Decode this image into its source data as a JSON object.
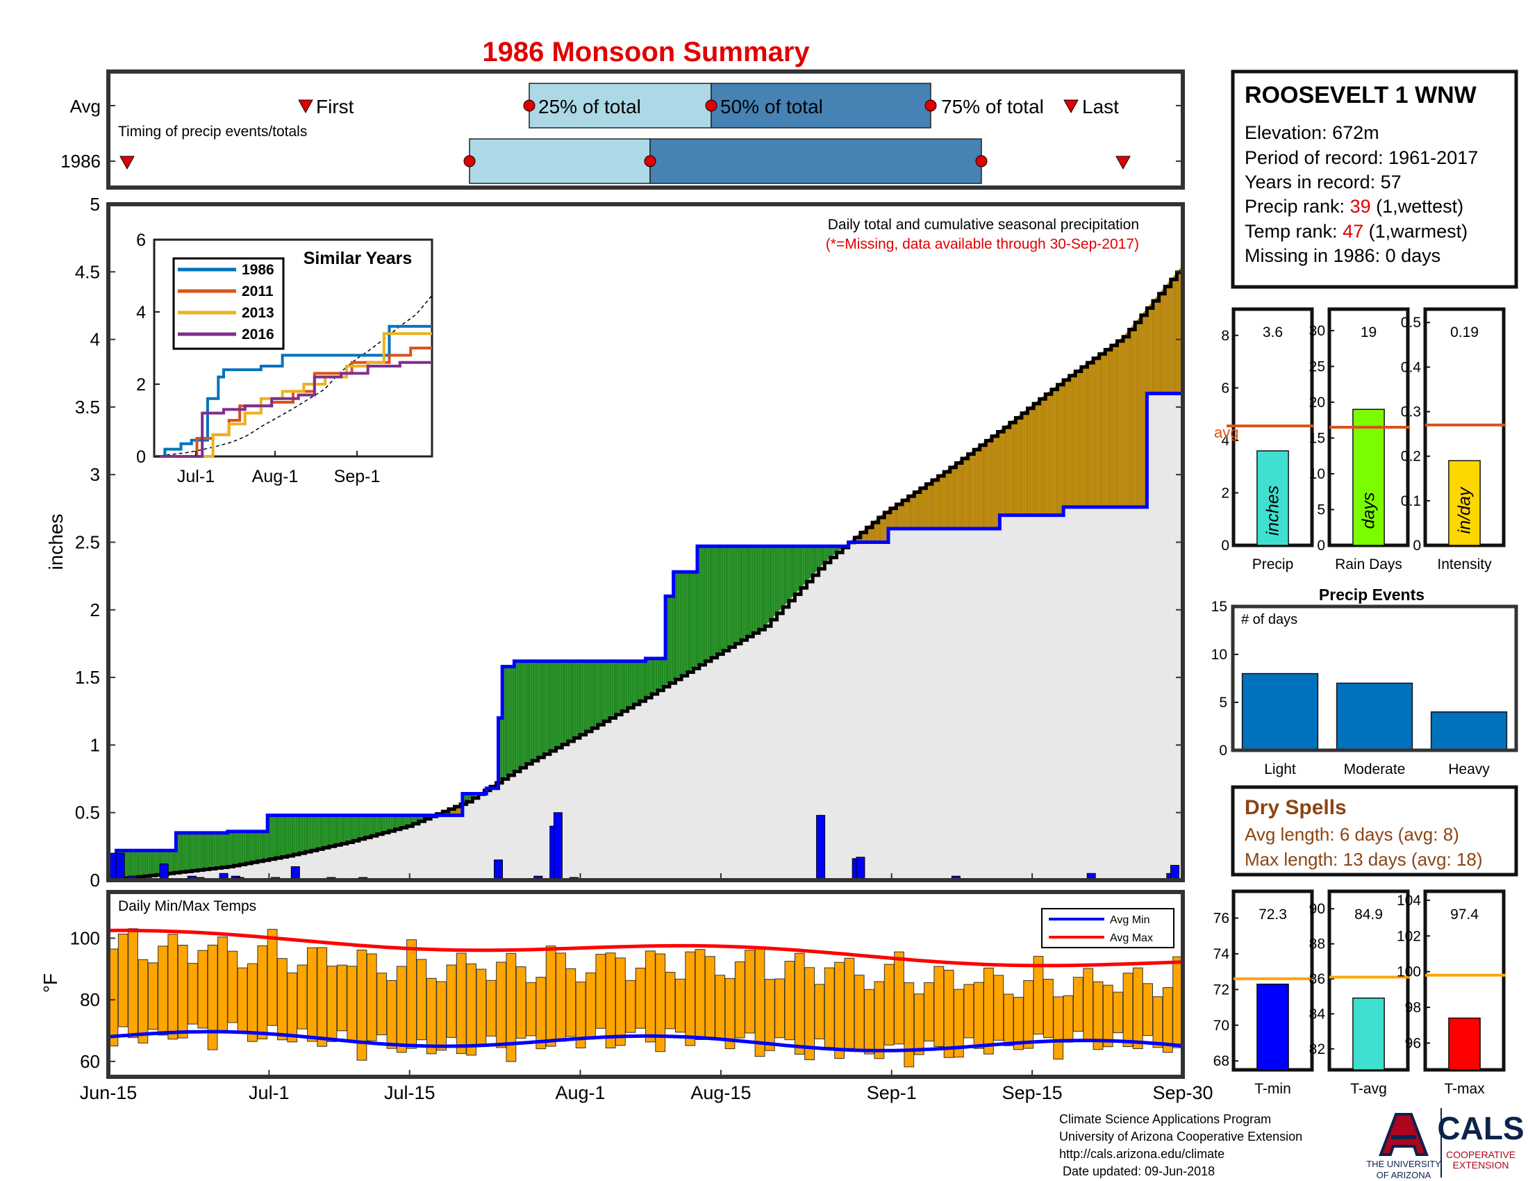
{
  "title": "1986 Monsoon Summary",
  "colors": {
    "title": "#e00000",
    "red": "#e00000",
    "black": "#000",
    "wet": "#228b22",
    "dry": "#b8860b",
    "fill": "#e8e8e8",
    "blue": "#0000ff",
    "orange": "#ffa500",
    "brown": "#8b4513",
    "light_box": "#add8e6",
    "dark_box": "#4682b4"
  },
  "timing_panel": {
    "row_labels": [
      "Avg",
      "1986"
    ],
    "subtitle": "Timing of precip events/totals",
    "labels": {
      "first": "First",
      "p25": "25% of total",
      "p50": "50% of total",
      "p75": "75% of total",
      "last": "Last"
    }
  },
  "main_panel": {
    "note": "Daily total and cumulative seasonal precipitation",
    "missing_note": "(*=Missing, data available through 30-Sep-2017)",
    "ylabel": "inches",
    "yticks": [
      "0",
      "0.5",
      "1",
      "1.5",
      "2",
      "2.5",
      "3",
      "3.5",
      "4",
      "4.5",
      "5"
    ],
    "xticks": [
      "Jun-15",
      "Jul-1",
      "Jul-15",
      "Aug-1",
      "Aug-15",
      "Sep-1",
      "Sep-15",
      "Sep-30"
    ]
  },
  "inset": {
    "title": "Similar Years",
    "yticks": [
      "0",
      "2",
      "4",
      "6"
    ],
    "xticks": [
      "Jul-1",
      "Aug-1",
      "Sep-1"
    ],
    "legend": [
      "1986",
      "2011",
      "2013",
      "2016"
    ],
    "legend_colors": [
      "#0072bd",
      "#d95319",
      "#edb120",
      "#7e2f8e"
    ]
  },
  "temp_panel": {
    "title": "Daily Min/Max Temps",
    "ylabel": "°F",
    "yticks": [
      "60",
      "80",
      "100"
    ],
    "legend": [
      "Avg Min",
      "Avg Max"
    ]
  },
  "station": {
    "name": "ROOSEVELT 1 WNW",
    "elevation": "Elevation: 672m",
    "period": "Period of record: 1961-2017",
    "years": "Years in record: 57",
    "precip_rank_label": "Precip rank: ",
    "precip_rank": "39",
    "precip_rank_note": " (1,wettest)",
    "temp_rank_label": "Temp rank: ",
    "temp_rank": "47",
    "temp_rank_note": " (1,warmest)",
    "missing": "Missing in 1986: 0 days"
  },
  "small_bars": [
    {
      "label": "Precip",
      "value": "3.6",
      "unit": "inches",
      "avg_label": "avg",
      "yticks": [
        "0",
        "2",
        "4",
        "6",
        "8"
      ],
      "color": "#40e0d0"
    },
    {
      "label": "Rain Days",
      "value": "19",
      "unit": "days",
      "yticks": [
        "0",
        "5",
        "10",
        "15",
        "20",
        "25",
        "30"
      ],
      "color": "#7cfc00"
    },
    {
      "label": "Intensity",
      "value": "0.19",
      "unit": "in/day",
      "yticks": [
        "0",
        "0.1",
        "0.2",
        "0.3",
        "0.4",
        "0.5"
      ],
      "color": "#ffd700"
    }
  ],
  "precip_events": {
    "title": "Precip Events",
    "ylabel_note": "# of days",
    "yticks": [
      "0",
      "5",
      "10",
      "15"
    ],
    "categories": [
      "Light",
      "Moderate",
      "Heavy"
    ]
  },
  "dry_spells": {
    "title": "Dry Spells",
    "avg": "Avg length: 6 days (avg: 8)",
    "max": "Max length: 13 days (avg: 18)"
  },
  "temp_bars": [
    {
      "label": "T-min",
      "value": "72.3",
      "yticks": [
        "68",
        "70",
        "72",
        "74",
        "76"
      ],
      "color": "#0000ff"
    },
    {
      "label": "T-avg",
      "value": "84.9",
      "yticks": [
        "82",
        "84",
        "86",
        "88",
        "90"
      ],
      "color": "#40e0d0"
    },
    {
      "label": "T-max",
      "value": "97.4",
      "yticks": [
        "96",
        "98",
        "100",
        "102",
        "104"
      ],
      "color": "#ff0000"
    }
  ],
  "footer": {
    "line1": "Climate Science Applications Program",
    "line2": "University of Arizona Cooperative Extension",
    "line3": "http://cals.arizona.edu/climate",
    "line4": " Date updated: 09-Jun-2018",
    "logo_ua1": "THE UNIVERSITY",
    "logo_ua2": "OF ARIZONA",
    "logo_cals": "CALS",
    "logo_coop1": "COOPERATIVE",
    "logo_coop2": "EXTENSION"
  },
  "chart_data": [
    {
      "type": "line",
      "title": "1986 Monsoon Summary",
      "subtitle": "Daily total and cumulative seasonal precipitation",
      "ylabel": "inches",
      "ylim": [
        0,
        5
      ],
      "x_range": [
        "Jun-15",
        "Sep-30"
      ],
      "series": [
        {
          "name": "Daily precip",
          "type": "bar",
          "x": [
            1,
            3,
            6,
            7,
            14,
            15,
            21,
            23,
            24,
            29,
            32,
            33,
            42,
            47,
            56,
            64,
            88,
            98,
            108,
            112,
            113,
            117,
            118,
            119,
            121,
            123,
            130,
            138,
            151,
            159,
            164,
            165,
            179,
            188,
            189,
            197,
            199,
            213,
            221,
            227,
            235,
            243,
            246,
            247,
            255,
            256,
            260,
            267,
            268
          ],
          "values": [
            0.2,
            0.2,
            0.03,
            0.01,
            0.12,
            0.01,
            0.03,
            0.02,
            0.01,
            0.05,
            0.03,
            0.02,
            0.02,
            0.1,
            0.02,
            0.02,
            0.01,
            0.15,
            0.03,
            0.4,
            0.5,
            0.02,
            0.01,
            0.01,
            0.01,
            0.01,
            0.01,
            0.01,
            0.01,
            0.01,
            0.01,
            0.01,
            0.48,
            0.16,
            0.17,
            0.01,
            0.01,
            0.03,
            0.01,
            0.01,
            0.01,
            0.01,
            0.01,
            0.05,
            0.01,
            0.01,
            0.01,
            0.05,
            0.11
          ]
        },
        {
          "name": "Cumulative 1986",
          "type": "line",
          "x": [
            0,
            2,
            4,
            10,
            16,
            17,
            20,
            22,
            30,
            31,
            39,
            40,
            45,
            80,
            85,
            89,
            92,
            95,
            96,
            98,
            99,
            102,
            103,
            104,
            132,
            134,
            135,
            137,
            138,
            140,
            142,
            148,
            149,
            186,
            196,
            210,
            224,
            240,
            260,
            261,
            269,
            270
          ],
          "values": [
            0,
            0.22,
            0.22,
            0.22,
            0.22,
            0.35,
            0.35,
            0.35,
            0.36,
            0.36,
            0.36,
            0.48,
            0.48,
            0.48,
            0.48,
            0.64,
            0.64,
            0.68,
            0.68,
            1.2,
            1.58,
            1.62,
            1.62,
            1.62,
            1.62,
            1.62,
            1.64,
            1.64,
            1.64,
            2.1,
            2.28,
            2.47,
            2.47,
            2.5,
            2.6,
            2.6,
            2.7,
            2.76,
            2.76,
            3.6,
            3.6,
            3.6
          ]
        },
        {
          "name": "Average cumulative",
          "type": "line",
          "x": [
            0,
            15,
            30,
            45,
            60,
            75,
            90,
            105,
            120,
            135,
            150,
            165,
            180,
            195,
            210,
            225,
            240,
            255,
            270
          ],
          "values": [
            0,
            0.05,
            0.1,
            0.18,
            0.28,
            0.4,
            0.58,
            0.86,
            1.1,
            1.35,
            1.62,
            1.88,
            2.35,
            2.72,
            3.02,
            3.35,
            3.7,
            4.02,
            4.55
          ]
        }
      ]
    },
    {
      "type": "line",
      "title": "Similar Years",
      "ylim": [
        0,
        6
      ],
      "series": [
        {
          "name": "1986",
          "x": [
            0,
            3,
            4,
            8,
            10,
            14,
            20,
            24,
            26,
            40,
            44,
            48,
            80,
            84,
            88,
            102,
            104
          ],
          "values": [
            0,
            0,
            0.2,
            0.2,
            0.35,
            0.45,
            1.6,
            2.2,
            2.4,
            2.5,
            2.5,
            2.8,
            2.8,
            2.8,
            3.6,
            3.6,
            3.6
          ]
        },
        {
          "name": "2011",
          "x": [
            0,
            10,
            16,
            22,
            28,
            32,
            44,
            52,
            60,
            74,
            80,
            88,
            96,
            104
          ],
          "values": [
            0,
            0,
            0.5,
            0.6,
            1.0,
            1.4,
            1.5,
            1.8,
            2.3,
            2.6,
            2.6,
            2.8,
            3.0,
            3.0
          ]
        },
        {
          "name": "2013",
          "x": [
            0,
            18,
            22,
            28,
            34,
            40,
            48,
            56,
            64,
            72,
            80,
            86,
            92,
            104
          ],
          "values": [
            0,
            0,
            0.6,
            0.9,
            1.2,
            1.6,
            1.8,
            2.0,
            2.2,
            2.5,
            2.6,
            3.4,
            3.4,
            3.4
          ]
        },
        {
          "name": "2016",
          "x": [
            0,
            10,
            18,
            26,
            34,
            44,
            54,
            60,
            70,
            80,
            92,
            104
          ],
          "values": [
            0,
            0,
            1.2,
            1.3,
            1.4,
            1.6,
            1.7,
            2.2,
            2.3,
            2.5,
            2.6,
            2.6
          ]
        }
      ]
    },
    {
      "type": "bar",
      "title": "Daily Min/Max Temps",
      "ylabel": "°F",
      "ylim": [
        55,
        115
      ],
      "series": [
        {
          "name": "Avg Min",
          "start": 68.0,
          "end": 64.5
        },
        {
          "name": "Avg Max",
          "start": 101.0,
          "end": 91.5
        }
      ]
    },
    {
      "type": "bar",
      "categories": [
        "Precip"
      ],
      "values": [
        3.6
      ],
      "avg": 4.55,
      "ylim": [
        0,
        9
      ]
    },
    {
      "type": "bar",
      "categories": [
        "Rain Days"
      ],
      "values": [
        19
      ],
      "avg": 16.5,
      "ylim": [
        0,
        33
      ]
    },
    {
      "type": "bar",
      "categories": [
        "Intensity"
      ],
      "values": [
        0.19
      ],
      "avg": 0.27,
      "ylim": [
        0,
        0.53
      ]
    },
    {
      "type": "bar",
      "title": "Precip Events",
      "categories": [
        "Light",
        "Moderate",
        "Heavy"
      ],
      "values": [
        8,
        7,
        4
      ],
      "ylim": [
        0,
        15
      ]
    },
    {
      "type": "bar",
      "categories": [
        "T-min"
      ],
      "values": [
        72.3
      ],
      "avg": 72.6,
      "ylim": [
        67.5,
        77.5
      ]
    },
    {
      "type": "bar",
      "categories": [
        "T-avg"
      ],
      "values": [
        84.9
      ],
      "avg": 86.1,
      "ylim": [
        80.8,
        91
      ]
    },
    {
      "type": "bar",
      "categories": [
        "T-max"
      ],
      "values": [
        97.4
      ],
      "avg": 99.8,
      "ylim": [
        94.5,
        104.5
      ]
    }
  ]
}
